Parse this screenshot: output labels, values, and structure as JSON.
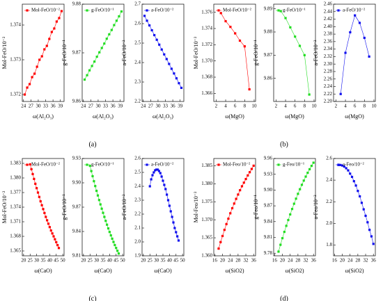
{
  "panel_labels": [
    "(a)",
    "(b)",
    "(c)",
    "(d)"
  ],
  "chart_data": [
    {
      "type": "line",
      "xlabel": "ω(Al₂O₃)",
      "ylabel": "Mol-FeO/10⁻²",
      "x": [
        24.5,
        25.5,
        26.5,
        27.5,
        28.5,
        29.5,
        30.5,
        31.5,
        32.5,
        33.5,
        34.5,
        35.5,
        36.5,
        37.5,
        38.5,
        39.5
      ],
      "xlim": [
        23.5,
        40.5
      ],
      "xticks": [
        24,
        27,
        30,
        33,
        36,
        39
      ],
      "ylim": [
        1.3718,
        1.3746
      ],
      "yticks": [
        1.372,
        1.373,
        1.374
      ],
      "series": [
        {
          "name": "Mol-FeO/10⁻²",
          "color": "#ff0000",
          "values": [
            1.372,
            1.3722,
            1.3723,
            1.3725,
            1.3726,
            1.3728,
            1.373,
            1.3731,
            1.3733,
            1.3734,
            1.3736,
            1.3738,
            1.3739,
            1.3741,
            1.3742,
            1.3744
          ]
        }
      ]
    },
    {
      "type": "line",
      "xlabel": "ω(Al₂O₃)",
      "ylabel": "g-FeO/10⁻¹",
      "x": [
        24.5,
        25.5,
        26.5,
        27.5,
        28.5,
        29.5,
        30.5,
        31.5,
        32.5,
        33.5,
        34.5,
        35.5,
        36.5,
        37.5,
        38.5,
        39.5
      ],
      "xlim": [
        23.5,
        40.5
      ],
      "xticks": [
        24,
        27,
        30,
        33,
        36,
        39
      ],
      "ylim": [
        9.86,
        9.88
      ],
      "yticks": [
        9.86,
        9.87,
        9.88
      ],
      "series": [
        {
          "name": "g-FeO/10⁻¹",
          "color": "#22dd22",
          "values": [
            9.8645,
            9.8654,
            9.8664,
            9.8673,
            9.8682,
            9.8692,
            9.8701,
            9.871,
            9.8719,
            9.8729,
            9.8738,
            9.8747,
            9.8757,
            9.8766,
            9.8775,
            9.8785
          ]
        }
      ]
    },
    {
      "type": "line",
      "xlabel": "ω(Al₂O₃)",
      "ylabel": "a-FeO/10⁻²",
      "x": [
        24.5,
        25.5,
        26.5,
        27.5,
        28.5,
        29.5,
        30.5,
        31.5,
        32.5,
        33.5,
        34.5,
        35.5,
        36.5,
        37.5,
        38.5,
        39.5
      ],
      "xlim": [
        23.5,
        40.5
      ],
      "xticks": [
        24,
        27,
        30,
        33,
        36,
        39
      ],
      "ylim": [
        2.2,
        2.7
      ],
      "yticks": [
        2.2,
        2.3,
        2.4,
        2.5,
        2.6,
        2.7
      ],
      "series": [
        {
          "name": "a-FeO/10⁻²",
          "color": "#1010ee",
          "values": [
            2.64,
            2.615,
            2.591,
            2.566,
            2.541,
            2.517,
            2.492,
            2.467,
            2.442,
            2.418,
            2.393,
            2.368,
            2.344,
            2.319,
            2.294,
            2.27
          ]
        }
      ]
    },
    {
      "type": "line",
      "xlabel": "ω(MgO)",
      "ylabel": "Mol-FeO/10⁻²",
      "x": [
        3,
        4,
        5,
        6,
        7,
        8,
        9
      ],
      "xlim": [
        1.5,
        10.3
      ],
      "xticks": [
        2,
        4,
        6,
        8,
        10
      ],
      "ylim": [
        1.365,
        1.377
      ],
      "yticks": [
        1.366,
        1.368,
        {
          "value": 1.37,
          "label": "1.370"
        },
        1.372,
        1.374,
        1.376
      ],
      "series": [
        {
          "name": "Mol-FeO/10⁻²",
          "color": "#ff0000",
          "values": [
            1.3759,
            1.3749,
            1.3742,
            1.3734,
            1.3725,
            1.3718,
            1.3665
          ]
        }
      ]
    },
    {
      "type": "line",
      "xlabel": "ω(MgO)",
      "ylabel": "g-FeO/10⁻¹",
      "x": [
        3,
        4,
        5,
        6,
        7,
        8,
        9
      ],
      "xlim": [
        1.5,
        10.3
      ],
      "xticks": [
        2,
        4,
        6,
        8,
        10
      ],
      "ylim": [
        9.85,
        9.892
      ],
      "yticks": [
        9.86,
        9.87,
        9.88,
        9.89
      ],
      "series": [
        {
          "name": "g-FeO/10⁻¹",
          "color": "#22dd22",
          "values": [
            9.889,
            9.886,
            9.882,
            9.878,
            9.874,
            9.87,
            9.853
          ]
        }
      ]
    },
    {
      "type": "line",
      "xlabel": "ω(MgO)",
      "ylabel": "a-FeO/10⁻²",
      "x": [
        3,
        4,
        5,
        6,
        7,
        8,
        9
      ],
      "xlim": [
        1.5,
        10.3
      ],
      "xticks": [
        2,
        4,
        6,
        8,
        10
      ],
      "ylim": [
        2.2,
        2.46
      ],
      "yticks": [
        {
          "value": 2.2,
          "label": "2.20"
        },
        2.22,
        2.24,
        2.26,
        2.28,
        {
          "value": 2.3,
          "label": "2.30"
        },
        2.32,
        2.34,
        2.36,
        2.38,
        {
          "value": 2.4,
          "label": "2.40"
        },
        2.42,
        2.44,
        2.46
      ],
      "series": [
        {
          "name": "a-FeO/10⁻²",
          "color": "#1010ee",
          "values": [
            2.22,
            2.33,
            2.385,
            2.43,
            2.41,
            2.37,
            2.32
          ]
        }
      ]
    },
    {
      "type": "line",
      "xlabel": "ω(CaO)",
      "ylabel": "Mol-FeO/10⁻²",
      "x": [
        25,
        26,
        27,
        28,
        29,
        30,
        31,
        32,
        33,
        34,
        35,
        36,
        37,
        38,
        39,
        40,
        41,
        42,
        43,
        44,
        45,
        46,
        47
      ],
      "xlim": [
        19,
        51
      ],
      "xticks": [
        20,
        25,
        30,
        35,
        40,
        45,
        50
      ],
      "ylim": [
        1.364,
        1.384
      ],
      "yticks": [
        1.365,
        1.368,
        1.371,
        1.374,
        1.377,
        {
          "value": 1.38,
          "label": "1.380"
        },
        1.383
      ],
      "series": [
        {
          "name": "Mol-FeO/10⁻²",
          "color": "#ff0000",
          "values": [
            1.3828,
            1.3818,
            1.3808,
            1.3798,
            1.3788,
            1.3779,
            1.377,
            1.3761,
            1.3752,
            1.3744,
            1.3736,
            1.3728,
            1.372,
            1.3713,
            1.3706,
            1.3699,
            1.3692,
            1.3686,
            1.368,
            1.3674,
            1.3668,
            1.3662,
            1.3656
          ]
        }
      ]
    },
    {
      "type": "line",
      "xlabel": "ω(CaO)",
      "ylabel": "g-FeO/10⁻¹",
      "x": [
        25,
        26,
        27,
        28,
        29,
        30,
        31,
        32,
        33,
        34,
        35,
        36,
        37,
        38,
        39,
        40,
        41,
        42,
        43,
        44,
        45,
        46,
        47
      ],
      "xlim": [
        19,
        51
      ],
      "xticks": [
        20,
        25,
        30,
        35,
        40,
        45,
        50
      ],
      "ylim": [
        9.81,
        9.93
      ],
      "yticks": [
        9.81,
        9.84,
        9.87,
        {
          "value": 9.9,
          "label": "9.90"
        },
        9.93
      ],
      "series": [
        {
          "name": "g-FeO/10⁻¹",
          "color": "#22dd22",
          "values": [
            9.921,
            9.9145,
            9.9082,
            9.902,
            9.896,
            9.8901,
            9.8844,
            9.8788,
            9.8734,
            9.8681,
            9.863,
            9.858,
            9.8531,
            9.8484,
            9.8438,
            9.8394,
            9.8352,
            9.8311,
            9.8271,
            9.8233,
            9.8197,
            9.8162,
            9.8128
          ]
        }
      ]
    },
    {
      "type": "line",
      "xlabel": "ω(CaO)",
      "ylabel": "a-FeO/10⁻²",
      "x": [
        25,
        26,
        27,
        28,
        29,
        30,
        31,
        32,
        33,
        34,
        35,
        36,
        37,
        38,
        39,
        40,
        41,
        42,
        43,
        44,
        45,
        46,
        47
      ],
      "xlim": [
        19,
        51
      ],
      "xticks": [
        20,
        25,
        30,
        35,
        40,
        45,
        50
      ],
      "ylim": [
        1.9,
        2.6
      ],
      "yticks": [
        1.9,
        {
          "value": 2,
          "label": "2.0"
        },
        2.1,
        2.2,
        2.3,
        2.4,
        2.5,
        2.6
      ],
      "series": [
        {
          "name": "a-FeO/10⁻²",
          "color": "#1010ee",
          "values": [
            2.4,
            2.45,
            2.48,
            2.5,
            2.515,
            2.52,
            2.52,
            2.51,
            2.495,
            2.47,
            2.44,
            2.41,
            2.38,
            2.34,
            2.3,
            2.26,
            2.22,
            2.18,
            2.14,
            2.1,
            2.07,
            2.04,
            2.01
          ]
        }
      ]
    },
    {
      "type": "line",
      "xlabel": "ω(SiO2)",
      "ylabel": "Mol-Feo/10⁻²",
      "x": [
        18,
        19,
        20,
        21,
        22,
        23,
        24,
        25,
        26,
        27,
        28,
        29,
        30,
        31,
        32,
        33,
        34,
        35,
        36
      ],
      "xlim": [
        15.5,
        37
      ],
      "xticks": [
        16,
        20,
        24,
        28,
        32,
        36
      ],
      "ylim": [
        1.36,
        1.387
      ],
      "yticks": [
        {
          "value": 1.36,
          "label": "1.360"
        },
        1.365,
        {
          "value": 1.37,
          "label": "1.370"
        },
        1.375,
        {
          "value": 1.38,
          "label": "1.380"
        },
        1.385
      ],
      "series": [
        {
          "name": "Mol-Feo/10⁻²",
          "color": "#ff0000",
          "values": [
            1.362,
            1.3638,
            1.3655,
            1.3672,
            1.3688,
            1.3703,
            1.3718,
            1.3732,
            1.3745,
            1.3758,
            1.377,
            1.3782,
            1.3793,
            1.3803,
            1.3813,
            1.3823,
            1.3832,
            1.3841,
            1.385
          ]
        }
      ]
    },
    {
      "type": "line",
      "xlabel": "ω(SiO2)",
      "ylabel": "g-Feo/10⁻¹",
      "x": [
        18,
        19,
        20,
        21,
        22,
        23,
        24,
        25,
        26,
        27,
        28,
        29,
        30,
        31,
        32,
        33,
        34,
        35,
        36
      ],
      "xlim": [
        15.5,
        37
      ],
      "xticks": [
        16,
        20,
        24,
        28,
        32,
        36
      ],
      "ylim": [
        9.775,
        9.96
      ],
      "yticks": [
        9.78,
        9.81,
        9.84,
        9.87,
        {
          "value": 9.9,
          "label": "9.90"
        },
        9.93,
        9.96
      ],
      "series": [
        {
          "name": "g-Feo/10⁻¹",
          "color": "#22dd22",
          "values": [
            9.783,
            9.796,
            9.8085,
            9.8205,
            9.832,
            9.843,
            9.8537,
            9.864,
            9.874,
            9.8836,
            9.8928,
            9.9016,
            9.91,
            9.918,
            9.9256,
            9.9328,
            9.9396,
            9.946,
            9.952
          ]
        }
      ]
    },
    {
      "type": "line",
      "xlabel": "ω(SiO2)",
      "ylabel": "a-Feo/10⁻²",
      "x": [
        18,
        19,
        20,
        21,
        22,
        23,
        24,
        25,
        26,
        27,
        28,
        29,
        30,
        31,
        32,
        33,
        34,
        35,
        36
      ],
      "xlim": [
        15.5,
        37
      ],
      "xticks": [
        16,
        20,
        24,
        28,
        32,
        36
      ],
      "ylim": [
        1.7,
        2.6
      ],
      "yticks": [
        1.8,
        {
          "value": 2,
          "label": "2.0"
        },
        2.2,
        2.4,
        2.6
      ],
      "series": [
        {
          "name": "a-Feo/10⁻²",
          "color": "#1010ee",
          "values": [
            2.54,
            2.54,
            2.535,
            2.525,
            2.51,
            2.49,
            2.46,
            2.43,
            2.39,
            2.35,
            2.3,
            2.25,
            2.19,
            2.13,
            2.07,
            2.01,
            1.94,
            1.88,
            1.81
          ]
        }
      ]
    }
  ]
}
